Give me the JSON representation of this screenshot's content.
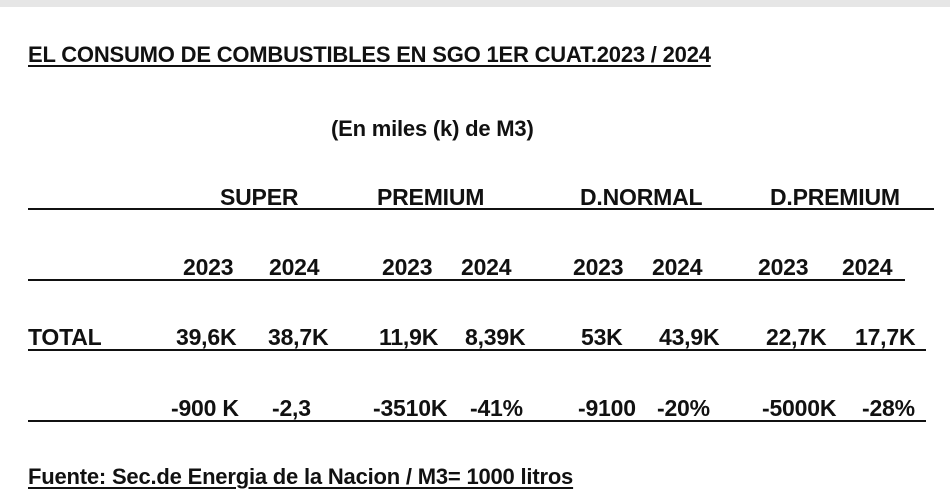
{
  "document": {
    "title": "EL CONSUMO DE COMBUSTIBLES EN SGO 1ER CUAT.2023 / 2024",
    "subtitle": "(En miles (k) de M3)",
    "source": "Fuente: Sec.de Energia de la Nacion /   M3= 1000 litros"
  },
  "table": {
    "fuels": [
      "SUPER",
      "PREMIUM",
      "D.NORMAL",
      "D.PREMIUM"
    ],
    "years": [
      [
        "2023",
        "2024"
      ],
      [
        "2023",
        "2024"
      ],
      [
        "2023",
        "2024"
      ],
      [
        "2023",
        "2024"
      ]
    ],
    "total_label": "TOTAL",
    "totals": [
      [
        "39,6K",
        "38,7K"
      ],
      [
        "11,9K",
        "8,39K"
      ],
      [
        "53K",
        "43,9K"
      ],
      [
        "22,7K",
        "17,7K"
      ]
    ],
    "differences": [
      [
        "-900 K",
        "-2,3"
      ],
      [
        "-3510K",
        "-41%"
      ],
      [
        "-9100",
        "-20%"
      ],
      [
        "-5000K",
        "-28%"
      ]
    ]
  }
}
